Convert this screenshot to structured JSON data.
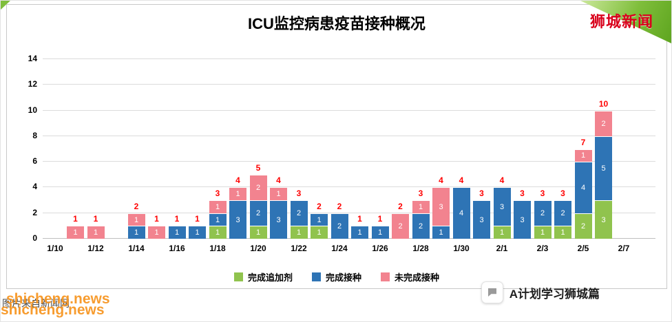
{
  "page": {
    "brand": "狮城新闻",
    "watermark": {
      "site": "shicheng.news",
      "caption": "图片来自新闻网"
    },
    "badge": {
      "label": "A计划学习狮城篇",
      "icon": "chat-bubble-icon"
    }
  },
  "chart_data": {
    "type": "bar",
    "stacked": true,
    "title": "ICU监控病患疫苗接种概况",
    "ylim": [
      0,
      14
    ],
    "y_ticks": [
      0,
      2,
      4,
      6,
      8,
      10,
      12,
      14
    ],
    "x_tick_labels": [
      "1/10",
      "1/12",
      "1/14",
      "1/16",
      "1/18",
      "1/20",
      "1/22",
      "1/24",
      "1/26",
      "1/28",
      "1/30",
      "2/1",
      "2/3",
      "2/5",
      "2/7"
    ],
    "grid": "horizontal",
    "legend_position": "bottom",
    "label_color_totals": "#ff0000",
    "series": [
      {
        "key": "booster",
        "name": "完成追加剂",
        "color": "#90c34e"
      },
      {
        "key": "full",
        "name": "完成接种",
        "color": "#2e74b5"
      },
      {
        "key": "partial",
        "name": "未完成接种",
        "color": "#f2838f"
      }
    ],
    "bars": [
      {
        "date": "1/11",
        "day": 1,
        "booster": 0,
        "full": 0,
        "partial": 1,
        "total": 1
      },
      {
        "date": "1/12",
        "day": 2,
        "booster": 0,
        "full": 0,
        "partial": 1,
        "total": 1
      },
      {
        "date": "1/14",
        "day": 4,
        "booster": 0,
        "full": 1,
        "partial": 1,
        "total": 2
      },
      {
        "date": "1/15",
        "day": 5,
        "booster": 0,
        "full": 0,
        "partial": 1,
        "total": 1
      },
      {
        "date": "1/16",
        "day": 6,
        "booster": 0,
        "full": 1,
        "partial": 0,
        "total": 1
      },
      {
        "date": "1/17",
        "day": 7,
        "booster": 0,
        "full": 1,
        "partial": 0,
        "total": 1
      },
      {
        "date": "1/18",
        "day": 8,
        "booster": 1,
        "full": 1,
        "partial": 1,
        "total": 3
      },
      {
        "date": "1/19",
        "day": 9,
        "booster": 0,
        "full": 3,
        "partial": 1,
        "total": 4
      },
      {
        "date": "1/20",
        "day": 10,
        "booster": 1,
        "full": 2,
        "partial": 2,
        "total": 5
      },
      {
        "date": "1/21",
        "day": 11,
        "booster": 0,
        "full": 3,
        "partial": 1,
        "total": 4
      },
      {
        "date": "1/22",
        "day": 12,
        "booster": 1,
        "full": 2,
        "partial": 0,
        "total": 3
      },
      {
        "date": "1/23",
        "day": 13,
        "booster": 1,
        "full": 1,
        "partial": 0,
        "total": 2
      },
      {
        "date": "1/24",
        "day": 14,
        "booster": 0,
        "full": 2,
        "partial": 0,
        "total": 2
      },
      {
        "date": "1/25",
        "day": 15,
        "booster": 0,
        "full": 1,
        "partial": 0,
        "total": 1
      },
      {
        "date": "1/26",
        "day": 16,
        "booster": 0,
        "full": 1,
        "partial": 0,
        "total": 1
      },
      {
        "date": "1/27",
        "day": 17,
        "booster": 0,
        "full": 0,
        "partial": 2,
        "total": 2
      },
      {
        "date": "1/28",
        "day": 18,
        "booster": 0,
        "full": 2,
        "partial": 1,
        "total": 3
      },
      {
        "date": "1/29",
        "day": 19,
        "booster": 0,
        "full": 1,
        "partial": 3,
        "total": 4
      },
      {
        "date": "1/30",
        "day": 20,
        "booster": 0,
        "full": 4,
        "partial": 0,
        "total": 4
      },
      {
        "date": "1/31",
        "day": 21,
        "booster": 0,
        "full": 3,
        "partial": 0,
        "total": 3
      },
      {
        "date": "2/1",
        "day": 22,
        "booster": 1,
        "full": 3,
        "partial": 0,
        "total": 4
      },
      {
        "date": "2/2",
        "day": 23,
        "booster": 0,
        "full": 3,
        "partial": 0,
        "total": 3
      },
      {
        "date": "2/3",
        "day": 24,
        "booster": 1,
        "full": 2,
        "partial": 0,
        "total": 3
      },
      {
        "date": "2/4",
        "day": 25,
        "booster": 1,
        "full": 2,
        "partial": 0,
        "total": 3
      },
      {
        "date": "2/5",
        "day": 26,
        "booster": 2,
        "full": 4,
        "partial": 1,
        "total": 7
      },
      {
        "date": "2/6",
        "day": 27,
        "booster": 3,
        "full": 5,
        "partial": 2,
        "total": 10
      }
    ]
  }
}
